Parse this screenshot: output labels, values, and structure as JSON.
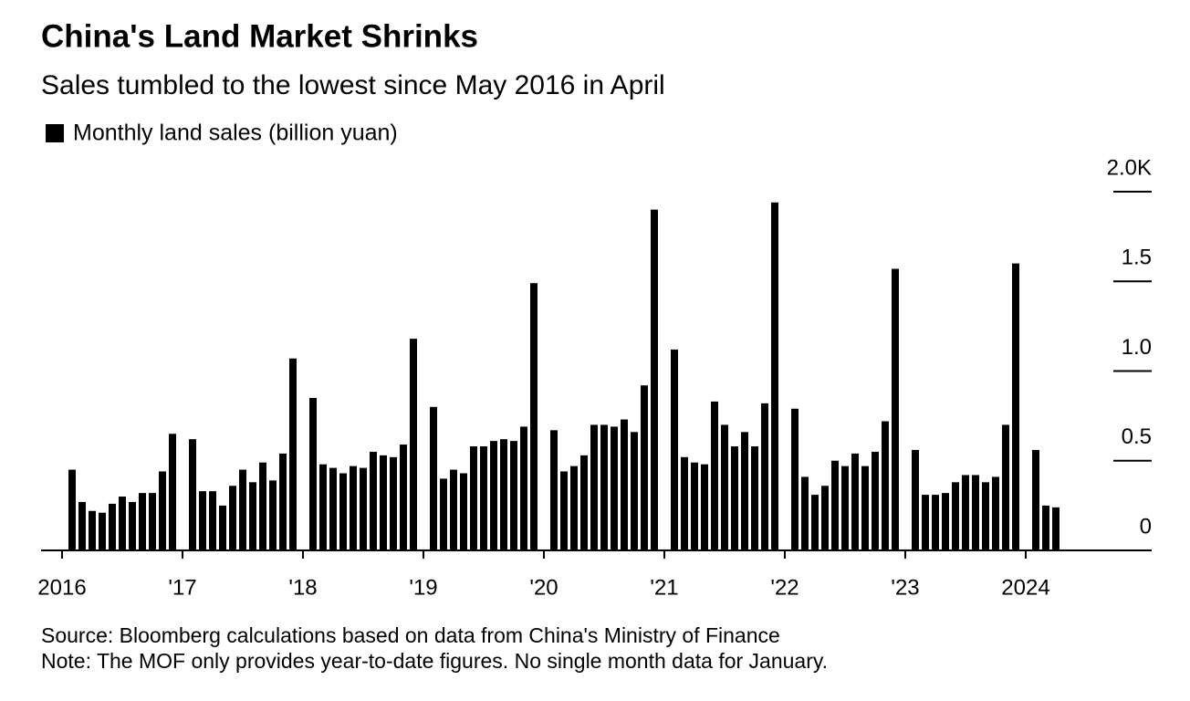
{
  "chart_data": {
    "type": "bar",
    "title": "China's Land Market Shrinks",
    "subtitle": "Sales tumbled to the lowest since May 2016 in April",
    "source": "Source: Bloomberg calculations based on data from China's Ministry of Finance",
    "note": "Note: The MOF only provides year-to-date figures. No single month data for January.",
    "categories": [
      "2016",
      null,
      null,
      null,
      null,
      null,
      null,
      null,
      null,
      null,
      null,
      null,
      "'17",
      null,
      null,
      null,
      null,
      null,
      null,
      null,
      null,
      null,
      null,
      null,
      "'18",
      null,
      null,
      null,
      null,
      null,
      null,
      null,
      null,
      null,
      null,
      null,
      "'19",
      null,
      null,
      null,
      null,
      null,
      null,
      null,
      null,
      null,
      null,
      null,
      "'20",
      null,
      null,
      null,
      null,
      null,
      null,
      null,
      null,
      null,
      null,
      null,
      "'21",
      null,
      null,
      null,
      null,
      null,
      null,
      null,
      null,
      null,
      null,
      null,
      "'22",
      null,
      null,
      null,
      null,
      null,
      null,
      null,
      null,
      null,
      null,
      null,
      "'23",
      null,
      null,
      null,
      null,
      null,
      null,
      null,
      null,
      null,
      null,
      null,
      "2024",
      null,
      null,
      null
    ],
    "series": [
      {
        "name": "Monthly land sales (billion yuan)",
        "color": "#000000",
        "values": [
          null,
          0.45,
          0.27,
          0.22,
          0.21,
          0.26,
          0.3,
          0.27,
          0.32,
          0.32,
          0.44,
          0.65,
          null,
          0.62,
          0.33,
          0.33,
          0.25,
          0.36,
          0.45,
          0.38,
          0.49,
          0.39,
          0.54,
          1.07,
          null,
          0.85,
          0.48,
          0.46,
          0.43,
          0.47,
          0.46,
          0.55,
          0.53,
          0.52,
          0.59,
          1.18,
          null,
          0.8,
          0.4,
          0.45,
          0.43,
          0.58,
          0.58,
          0.61,
          0.62,
          0.61,
          0.69,
          1.49,
          null,
          0.67,
          0.44,
          0.47,
          0.53,
          0.7,
          0.7,
          0.69,
          0.73,
          0.66,
          0.92,
          1.9,
          null,
          1.12,
          0.52,
          0.49,
          0.48,
          0.83,
          0.7,
          0.58,
          0.66,
          0.58,
          0.82,
          1.94,
          null,
          0.79,
          0.41,
          0.31,
          0.36,
          0.5,
          0.47,
          0.54,
          0.47,
          0.55,
          0.72,
          1.57,
          null,
          0.56,
          0.31,
          0.31,
          0.32,
          0.38,
          0.42,
          0.42,
          0.38,
          0.41,
          0.7,
          1.6,
          null,
          0.56,
          0.25,
          0.24
        ]
      }
    ],
    "ylim": [
      0,
      2
    ],
    "yticks": [
      0,
      0.5,
      {
        "value": 1,
        "label": "1.0"
      },
      1.5,
      {
        "value": 2,
        "label": "2.0K"
      }
    ],
    "grid": false
  }
}
